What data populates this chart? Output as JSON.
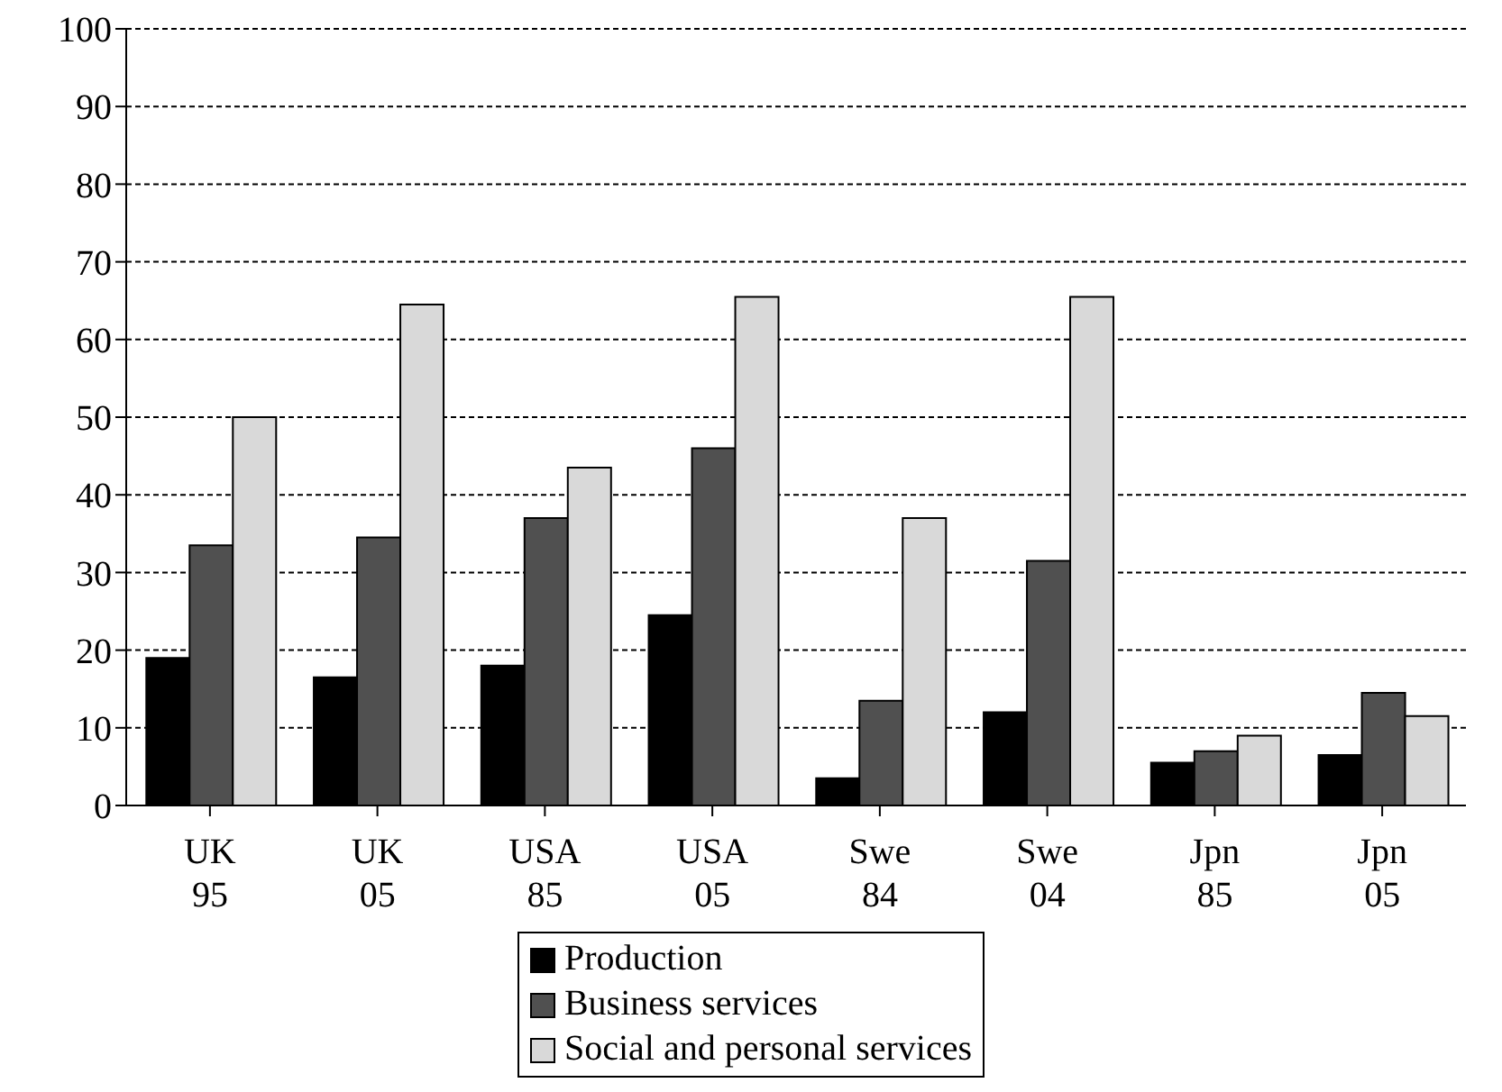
{
  "chart_data": {
    "type": "bar",
    "categories": [
      "UK\n95",
      "UK\n05",
      "USA\n85",
      "USA\n05",
      "Swe\n84",
      "Swe\n04",
      "Jpn\n85",
      "Jpn\n05"
    ],
    "series": [
      {
        "name": "Production",
        "color": "#000000",
        "values": [
          19,
          16.5,
          18,
          24.5,
          3.5,
          12,
          5.5,
          6.5
        ]
      },
      {
        "name": "Business services",
        "color": "#505050",
        "values": [
          33.5,
          34.5,
          37,
          46,
          13.5,
          31.5,
          7,
          14.5
        ]
      },
      {
        "name": "Social and personal services",
        "color": "#d9d9d9",
        "values": [
          50,
          64.5,
          43.5,
          65.5,
          37,
          65.5,
          9,
          11.5
        ]
      }
    ],
    "ylim": [
      0,
      100
    ],
    "yticks": [
      0,
      10,
      20,
      30,
      40,
      50,
      60,
      70,
      80,
      90,
      100
    ],
    "grid": "y",
    "legend": "bottom"
  }
}
